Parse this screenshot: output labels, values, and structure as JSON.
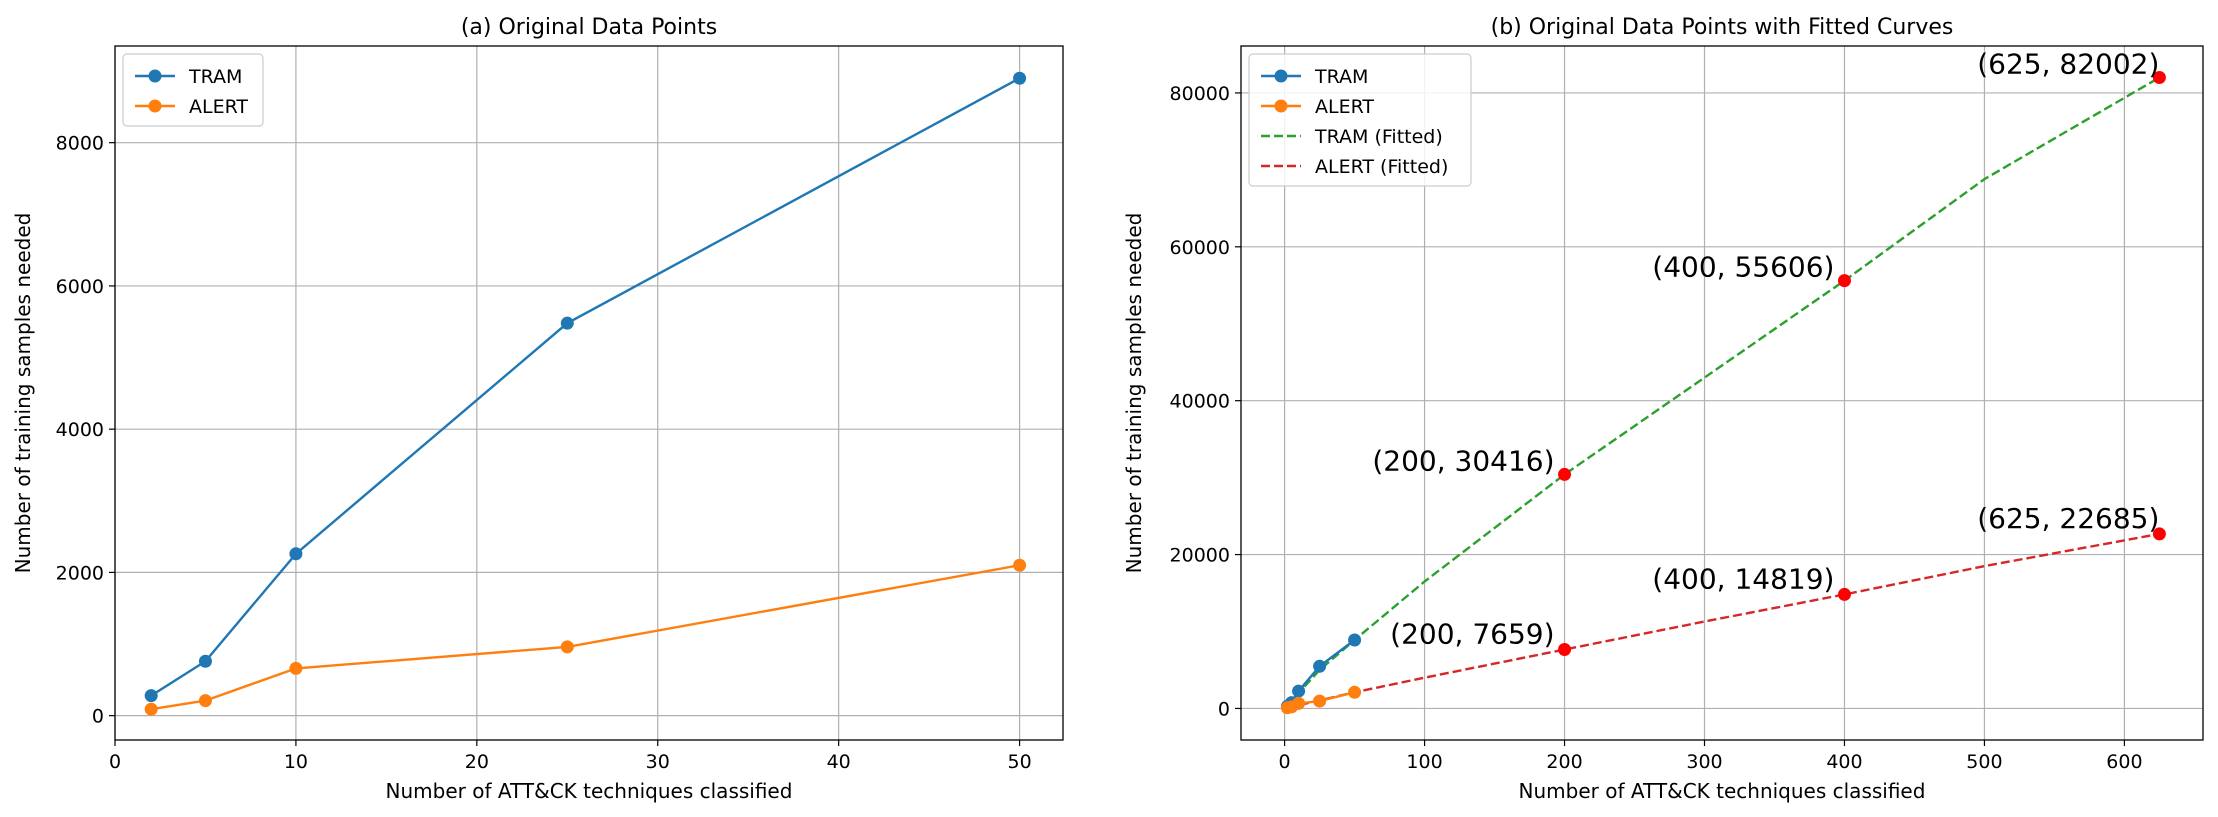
{
  "chart_data": [
    {
      "type": "line",
      "title": "(a) Original Data Points",
      "xlabel": "Number of ATT&CK techniques classified",
      "ylabel": "Number of training samples needed",
      "xlim": [
        0,
        52.4
      ],
      "ylim": [
        -340,
        9350
      ],
      "xticks": [
        0,
        10,
        20,
        30,
        40,
        50
      ],
      "yticks": [
        0,
        2000,
        4000,
        6000,
        8000
      ],
      "grid": true,
      "legend_position": "upper-left",
      "series": [
        {
          "name": "TRAM",
          "color": "#1f77b4",
          "style": "solid",
          "marker": "o",
          "x": [
            2,
            5,
            10,
            25,
            50
          ],
          "y": [
            280,
            760,
            2260,
            5480,
            8900
          ]
        },
        {
          "name": "ALERT",
          "color": "#ff7f0e",
          "style": "solid",
          "marker": "o",
          "x": [
            2,
            5,
            10,
            25,
            50
          ],
          "y": [
            90,
            210,
            660,
            960,
            2100
          ]
        }
      ]
    },
    {
      "type": "line",
      "title": "(b) Original Data Points with Fitted Curves",
      "xlabel": "Number of ATT&CK techniques classified",
      "ylabel": "Number of training samples needed",
      "xlim": [
        -31.15,
        656.15
      ],
      "ylim": [
        -4100,
        86100
      ],
      "xticks": [
        0,
        100,
        200,
        300,
        400,
        500,
        600
      ],
      "yticks": [
        0,
        20000,
        40000,
        60000,
        80000
      ],
      "grid": true,
      "legend_position": "upper-left",
      "series": [
        {
          "name": "TRAM",
          "color": "#1f77b4",
          "style": "solid",
          "marker": "o",
          "x": [
            2,
            5,
            10,
            25,
            50
          ],
          "y": [
            280,
            760,
            2260,
            5480,
            8900
          ]
        },
        {
          "name": "ALERT",
          "color": "#ff7f0e",
          "style": "solid",
          "marker": "o",
          "x": [
            2,
            5,
            10,
            25,
            50
          ],
          "y": [
            90,
            210,
            660,
            960,
            2100
          ]
        },
        {
          "name": "TRAM (Fitted)",
          "color": "#2ca02c",
          "style": "dashed",
          "marker": "none",
          "x": [
            2,
            10,
            25,
            50,
            100,
            200,
            300,
            400,
            500,
            625
          ],
          "y": [
            280,
            2000,
            5000,
            8900,
            16500,
            30416,
            43000,
            55606,
            68800,
            82002
          ]
        },
        {
          "name": "ALERT (Fitted)",
          "color": "#d62728",
          "style": "dashed",
          "marker": "none",
          "x": [
            2,
            50,
            100,
            200,
            300,
            400,
            500,
            625
          ],
          "y": [
            90,
            2100,
            4000,
            7659,
            11300,
            14819,
            18500,
            22685
          ]
        }
      ],
      "highlight_points": {
        "color": "#ff0000",
        "points": [
          {
            "x": 200,
            "y": 30416,
            "label": "(200, 30416)"
          },
          {
            "x": 400,
            "y": 55606,
            "label": "(400, 55606)"
          },
          {
            "x": 625,
            "y": 82002,
            "label": "(625, 82002)"
          },
          {
            "x": 200,
            "y": 7659,
            "label": "(200, 7659)"
          },
          {
            "x": 400,
            "y": 14819,
            "label": "(400, 14819)"
          },
          {
            "x": 625,
            "y": 22685,
            "label": "(625, 22685)"
          }
        ]
      }
    }
  ]
}
